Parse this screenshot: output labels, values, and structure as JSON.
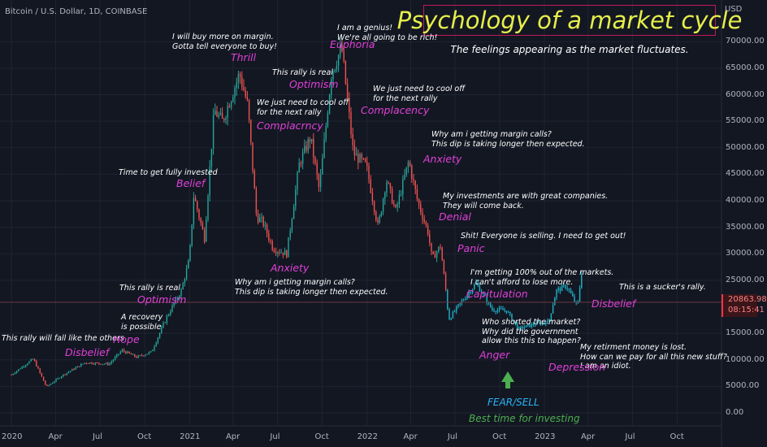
{
  "header": {
    "symbol": "Bitcoin / U.S. Dollar, 1D, COINBASE",
    "title": "Psychology of a market cycle",
    "subtitle": "The feelings appearing as the market fluctuates.",
    "currency": "USD",
    "last_price": "20863.98",
    "countdown": "08:15:41"
  },
  "colors": {
    "background": "#131722",
    "up_candle": "#26a69a",
    "down_candle": "#ef5350",
    "title": "#e6ee4a",
    "title_border": "#c2185b",
    "emotion_label": "#e040d8",
    "fear_label": "#29b6f6",
    "best_label": "#4caf50",
    "arrow": "#4caf50"
  },
  "chart_data": {
    "type": "line",
    "title": "Psychology of a market cycle",
    "subtitle": "The feelings appearing as the market fluctuates.",
    "xlabel": "",
    "ylabel": "USD",
    "ylim": [
      0,
      75000
    ],
    "grid": true,
    "y_ticks": [
      "70000.00",
      "65000.00",
      "60000.00",
      "55000.00",
      "50000.00",
      "45000.00",
      "40000.00",
      "35000.00",
      "30000.00",
      "25000.00",
      "15000.00",
      "10000.00",
      "5000.00",
      "0.00"
    ],
    "x_ticks": [
      "2020",
      "Apr",
      "Jul",
      "Oct",
      "2021",
      "Apr",
      "Jul",
      "Oct",
      "2022",
      "Apr",
      "Jul",
      "Oct",
      "2023",
      "Apr",
      "Jul",
      "Oct"
    ],
    "series": [
      {
        "x": [
          "2020-01-01",
          "2020-02-15",
          "2020-03-13",
          "2020-04-15",
          "2020-06-01",
          "2020-07-20",
          "2020-08-15",
          "2020-09-15",
          "2020-10-15",
          "2020-11-15",
          "2020-12-15",
          "2021-01-01",
          "2021-01-10",
          "2021-02-01",
          "2021-02-21",
          "2021-03-10",
          "2021-04-14",
          "2021-05-01",
          "2021-05-19",
          "2021-06-01",
          "2021-06-22",
          "2021-07-20",
          "2021-08-15",
          "2021-09-07",
          "2021-09-25",
          "2021-10-20",
          "2021-11-10",
          "2021-12-04",
          "2021-12-31",
          "2022-01-24",
          "2022-02-10",
          "2022-03-01",
          "2022-03-28",
          "2022-04-15",
          "2022-05-07",
          "2022-05-15",
          "2022-06-01",
          "2022-06-13",
          "2022-06-18",
          "2022-07-15",
          "2022-08-14",
          "2022-09-15",
          "2022-10-15",
          "2022-11-09",
          "2022-11-21",
          "2022-12-15",
          "2023-01-10",
          "2023-01-25",
          "2023-02-15",
          "2023-03-10",
          "2023-03-20"
        ],
        "values": [
          7200,
          10200,
          4900,
          7100,
          9500,
          9200,
          11800,
          10500,
          11500,
          18000,
          23000,
          29000,
          41000,
          33000,
          57000,
          55000,
          64000,
          58000,
          37000,
          36000,
          31000,
          30000,
          47000,
          52000,
          42000,
          64000,
          69000,
          49000,
          46500,
          35000,
          44000,
          38000,
          47500,
          40000,
          34000,
          29000,
          31500,
          22500,
          17600,
          21000,
          24500,
          19500,
          19300,
          15800,
          16200,
          16800,
          17200,
          23000,
          24000,
          20000,
          27800
        ]
      }
    ],
    "annotations": [
      {
        "label": "Disbelief",
        "note": "This rally will fall like the others"
      },
      {
        "label": "Hope",
        "note": "A recovery\nis possible"
      },
      {
        "label": "Optimism",
        "note": "This rally is real"
      },
      {
        "label": "Belief",
        "note": "Time to get fully invested"
      },
      {
        "label": "Thrill",
        "note": "I will buy more on margin.\nGotta tell everyone to buy!"
      },
      {
        "label": "Complacrncy",
        "note": "We just need to cool off\nfor the next rally"
      },
      {
        "label": "Anxiety",
        "note": "Why am i getting margin calls?\nThis dip is taking longer then expected."
      },
      {
        "label": "Optimism",
        "note": "This rally is real"
      },
      {
        "label": "Euphoria",
        "note": "I am a genius!\nWe're all going to be rich!"
      },
      {
        "label": "Complacency",
        "note": "We just need to cool off\nfor the next rally"
      },
      {
        "label": "Anxiety",
        "note": "Why am i getting margin calls?\nThis dip is taking longer then expected."
      },
      {
        "label": "Denial",
        "note": "My investments are with great companies.\nThey will come back."
      },
      {
        "label": "Panic",
        "note": "Shit! Everyone is selling. I need to get out!"
      },
      {
        "label": "Capitulation",
        "note": "I'm getting 100% out of the markets.\nI can't afford to lose more."
      },
      {
        "label": "Anger",
        "note": "Who shorted the market?\nWhy did the government\nallow this this to happen?"
      },
      {
        "label": "Depression",
        "note": "My retirment money is lost.\nHow can we pay for all this new stuff?\nI am an idiot."
      },
      {
        "label": "Disbelief",
        "note": "This is a sucker's rally."
      }
    ],
    "callout": {
      "line1": "FEAR/SELL",
      "line2": "Best time for investing"
    }
  }
}
